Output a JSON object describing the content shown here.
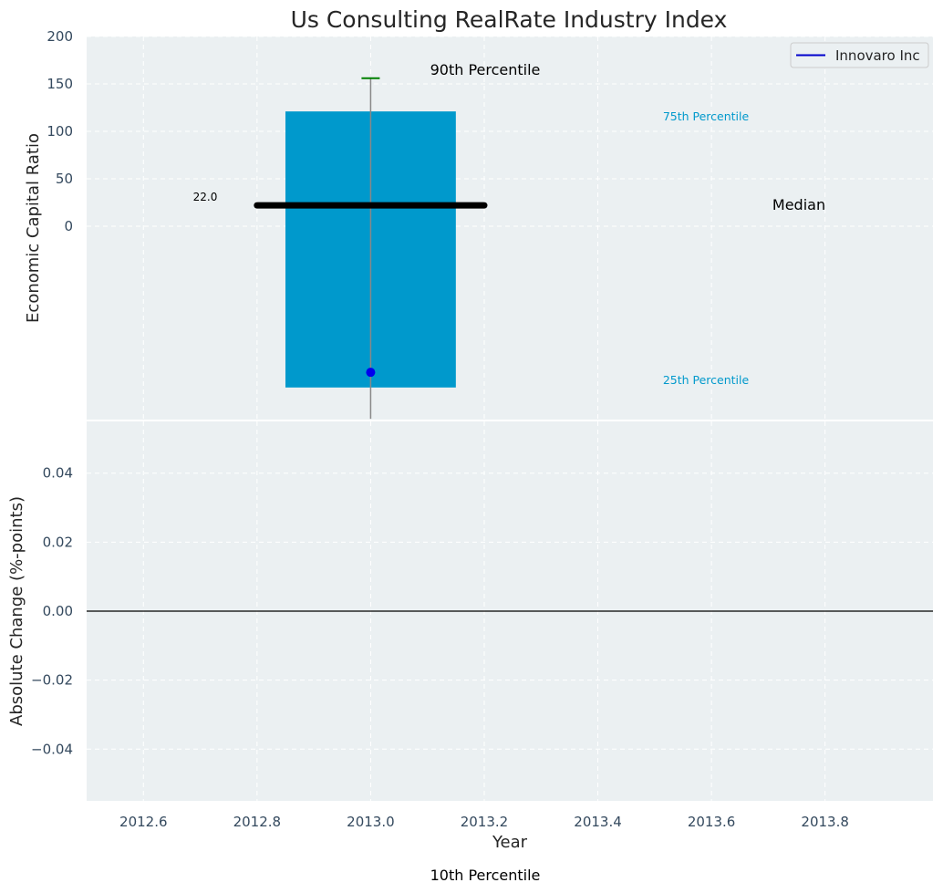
{
  "chart_data": [
    {
      "type": "bar",
      "title": "Us Consulting RealRate Industry Index",
      "ylabel": "Economic Capital Ratio",
      "xlim": [
        2012.5,
        2013.99
      ],
      "y_ticks": [
        0,
        50,
        100,
        150,
        200
      ],
      "y_tick_labels": [
        "0",
        "50",
        "100",
        "150",
        "200"
      ],
      "grid": true,
      "legend_position": "top-right",
      "legend": [
        {
          "label": "Innovaro Inc",
          "color": "#0000cc"
        }
      ],
      "box": {
        "x": 2013.0,
        "q25": -170,
        "q75": 121,
        "bar_left": 2012.85,
        "bar_right": 2013.15,
        "color": "#0099cc"
      },
      "whisker": {
        "low": -203,
        "high": 156,
        "color": "#888888",
        "cap_color": "#008000"
      },
      "median": {
        "value": 22.0,
        "label": "22.0",
        "x_from": 2012.8,
        "x_to": 2013.2,
        "color": "#000000"
      },
      "company_point": {
        "x": 2013.0,
        "y": -154,
        "color": "#0000ee"
      },
      "annotations": {
        "p90": "90th Percentile",
        "p75": "75th Percentile",
        "median": "Median",
        "p25": "25th Percentile",
        "p10": "10th Percentile"
      }
    },
    {
      "type": "line",
      "xlabel": "Year",
      "ylabel": "Absolute Change (%-points)",
      "ylim": [
        -0.055,
        0.055
      ],
      "y_ticks": [
        -0.04,
        -0.02,
        0.0,
        0.02,
        0.04
      ],
      "y_tick_labels": [
        "−0.04",
        "−0.02",
        "0.00",
        "0.02",
        "0.04"
      ],
      "x_ticks": [
        2012.6,
        2012.8,
        2013.0,
        2013.2,
        2013.4,
        2013.6,
        2013.8
      ],
      "x_tick_labels": [
        "2012.6",
        "2012.8",
        "2013.0",
        "2013.2",
        "2013.4",
        "2013.6",
        "2013.8"
      ],
      "reference_line": 0.0,
      "grid": true,
      "series": []
    }
  ]
}
